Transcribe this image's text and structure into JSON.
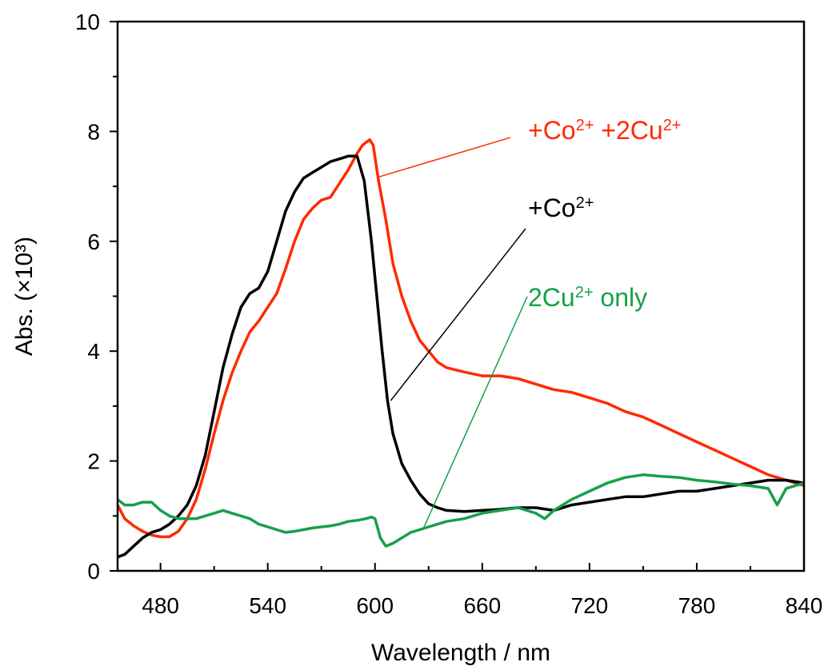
{
  "chart_data": {
    "type": "line",
    "title": "",
    "xlabel": "Wavelength / nm",
    "ylabel": "Abs. (×10³)",
    "xlim": [
      456,
      840
    ],
    "ylim": [
      0,
      10
    ],
    "x_ticks": [
      480,
      540,
      600,
      660,
      720,
      780,
      840
    ],
    "y_ticks": [
      0,
      2,
      4,
      6,
      8,
      10
    ],
    "grid": false,
    "legend": "inline-labels",
    "series": [
      {
        "name": "+Co2+ +2Cu2+",
        "label_parts": [
          "+Co",
          "2+",
          " +2Cu",
          "2+"
        ],
        "color": "#ff2a00",
        "label_color": "#ff2a00",
        "x": [
          456,
          460,
          465,
          470,
          475,
          480,
          485,
          490,
          495,
          500,
          505,
          510,
          515,
          520,
          525,
          530,
          535,
          540,
          545,
          550,
          555,
          560,
          565,
          570,
          575,
          580,
          585,
          590,
          593,
          597,
          599,
          602,
          606,
          610,
          615,
          620,
          625,
          630,
          635,
          640,
          650,
          660,
          670,
          680,
          690,
          700,
          710,
          720,
          730,
          740,
          750,
          760,
          770,
          780,
          790,
          800,
          810,
          820,
          830,
          840
        ],
        "y": [
          1.2,
          0.95,
          0.82,
          0.72,
          0.65,
          0.62,
          0.62,
          0.72,
          0.95,
          1.3,
          1.85,
          2.5,
          3.1,
          3.6,
          4.0,
          4.35,
          4.55,
          4.8,
          5.05,
          5.5,
          6.0,
          6.4,
          6.6,
          6.75,
          6.8,
          7.05,
          7.3,
          7.6,
          7.75,
          7.85,
          7.75,
          7.1,
          6.4,
          5.6,
          5.0,
          4.55,
          4.2,
          4.0,
          3.8,
          3.7,
          3.62,
          3.55,
          3.55,
          3.5,
          3.4,
          3.3,
          3.25,
          3.15,
          3.05,
          2.9,
          2.8,
          2.65,
          2.5,
          2.35,
          2.2,
          2.05,
          1.9,
          1.75,
          1.65,
          1.55
        ]
      },
      {
        "name": "+Co2+",
        "label_parts": [
          "+Co",
          "2+"
        ],
        "color": "#000000",
        "label_color": "#000000",
        "x": [
          456,
          460,
          465,
          470,
          475,
          480,
          485,
          490,
          495,
          500,
          505,
          510,
          515,
          520,
          525,
          530,
          535,
          540,
          545,
          550,
          555,
          560,
          565,
          570,
          575,
          580,
          585,
          590,
          594,
          598,
          601,
          604,
          607,
          610,
          615,
          620,
          625,
          630,
          635,
          640,
          650,
          660,
          670,
          680,
          690,
          700,
          710,
          720,
          730,
          740,
          750,
          760,
          770,
          780,
          790,
          800,
          810,
          820,
          830,
          840
        ],
        "y": [
          0.25,
          0.3,
          0.45,
          0.6,
          0.7,
          0.75,
          0.85,
          1.0,
          1.2,
          1.55,
          2.1,
          2.9,
          3.7,
          4.3,
          4.8,
          5.05,
          5.15,
          5.45,
          6.0,
          6.55,
          6.9,
          7.15,
          7.25,
          7.35,
          7.45,
          7.5,
          7.55,
          7.55,
          7.1,
          6.0,
          5.0,
          4.0,
          3.1,
          2.5,
          1.95,
          1.65,
          1.4,
          1.22,
          1.15,
          1.1,
          1.08,
          1.1,
          1.12,
          1.15,
          1.15,
          1.1,
          1.2,
          1.25,
          1.3,
          1.35,
          1.35,
          1.4,
          1.45,
          1.45,
          1.5,
          1.55,
          1.6,
          1.65,
          1.65,
          1.6
        ]
      },
      {
        "name": "2Cu2+ only",
        "label_parts": [
          "2Cu",
          "2+",
          " only"
        ],
        "color": "#16a04a",
        "label_color": "#16a04a",
        "x": [
          456,
          460,
          465,
          470,
          475,
          480,
          485,
          490,
          495,
          500,
          505,
          510,
          515,
          520,
          525,
          530,
          535,
          540,
          545,
          550,
          555,
          560,
          565,
          570,
          575,
          580,
          585,
          590,
          595,
          598,
          600,
          603,
          606,
          610,
          615,
          620,
          625,
          630,
          635,
          640,
          650,
          660,
          670,
          680,
          690,
          695,
          700,
          710,
          720,
          730,
          740,
          750,
          760,
          770,
          780,
          790,
          800,
          810,
          820,
          825,
          830,
          840
        ],
        "y": [
          1.3,
          1.2,
          1.2,
          1.25,
          1.25,
          1.1,
          1.0,
          0.95,
          0.95,
          0.95,
          1.0,
          1.05,
          1.1,
          1.05,
          1.0,
          0.95,
          0.85,
          0.8,
          0.75,
          0.7,
          0.72,
          0.75,
          0.78,
          0.8,
          0.82,
          0.85,
          0.9,
          0.92,
          0.95,
          0.98,
          0.95,
          0.6,
          0.45,
          0.5,
          0.6,
          0.7,
          0.75,
          0.8,
          0.85,
          0.9,
          0.95,
          1.05,
          1.1,
          1.15,
          1.05,
          0.95,
          1.1,
          1.3,
          1.45,
          1.6,
          1.7,
          1.75,
          1.72,
          1.7,
          1.65,
          1.62,
          1.58,
          1.55,
          1.5,
          1.2,
          1.5,
          1.6
        ]
      }
    ],
    "annotations": [
      {
        "series": 0,
        "label_pos": "upper-right",
        "line_color": "#ff2a00"
      },
      {
        "series": 1,
        "label_pos": "middle-right",
        "line_color": "#000000"
      },
      {
        "series": 2,
        "label_pos": "lower-right",
        "line_color": "#16a04a"
      }
    ]
  }
}
